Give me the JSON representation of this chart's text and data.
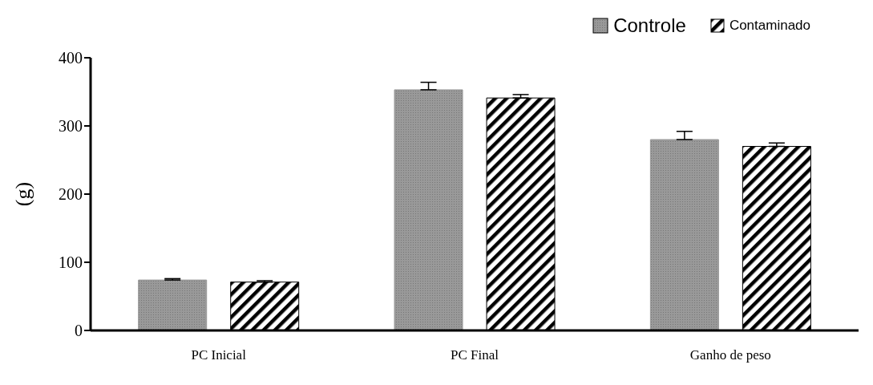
{
  "chart_data": {
    "type": "bar",
    "ylabel": "(g)",
    "categories": [
      "PC Inicial",
      "PC Final",
      "Ganho de peso"
    ],
    "series": [
      {
        "name": "Controle",
        "color": "#999999",
        "values": [
          74,
          353,
          280
        ],
        "errors": [
          [
            74,
            76
          ],
          [
            353,
            364
          ],
          [
            280,
            292
          ]
        ]
      },
      {
        "name": "Contaminado",
        "color": "#000000",
        "values": [
          71,
          341,
          270
        ],
        "errors": [
          [
            71,
            73
          ],
          [
            341,
            346
          ],
          [
            270,
            275
          ]
        ]
      }
    ],
    "ylim": [
      0,
      400
    ],
    "yticks": [
      0,
      100,
      200,
      300,
      400
    ],
    "legend": "top right"
  }
}
